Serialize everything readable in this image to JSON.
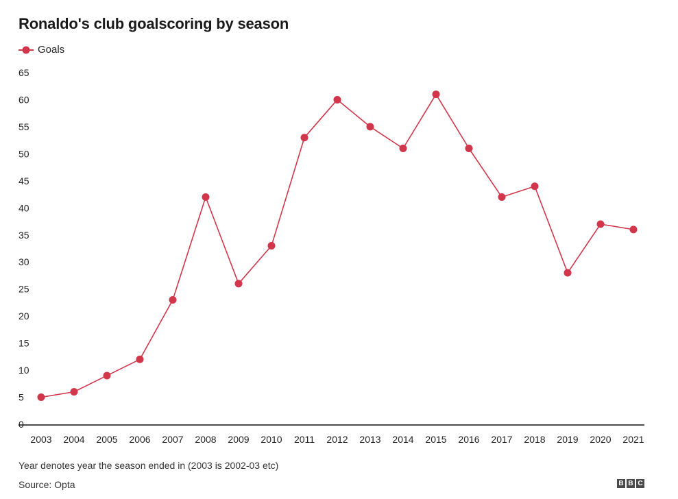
{
  "chart_data": {
    "type": "line",
    "title": "Ronaldo's club goalscoring by season",
    "xlabel": "",
    "ylabel": "",
    "categories": [
      "2003",
      "2004",
      "2005",
      "2006",
      "2007",
      "2008",
      "2009",
      "2010",
      "2011",
      "2012",
      "2013",
      "2014",
      "2015",
      "2016",
      "2017",
      "2018",
      "2019",
      "2020",
      "2021"
    ],
    "series": [
      {
        "name": "Goals",
        "color": "#d1364a",
        "values": [
          5,
          6,
          9,
          12,
          23,
          42,
          26,
          33,
          53,
          60,
          55,
          51,
          61,
          51,
          42,
          44,
          28,
          37,
          36
        ]
      }
    ],
    "ylim": [
      0,
      65
    ],
    "yticks": [
      0,
      5,
      10,
      15,
      20,
      25,
      30,
      35,
      40,
      45,
      50,
      55,
      60,
      65
    ],
    "grid": false,
    "legend": "top-left"
  },
  "footnote": "Year denotes year the season ended in (2003 is 2002-03 etc)",
  "source": "Source: Opta",
  "logo_letters": [
    "B",
    "B",
    "C"
  ]
}
